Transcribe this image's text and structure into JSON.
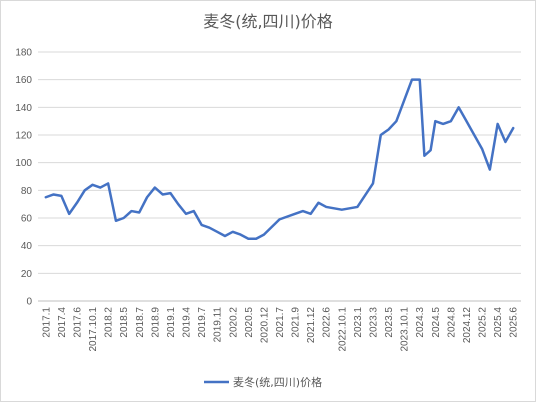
{
  "chart_data": {
    "type": "line",
    "title": "麦冬(统,四川)价格",
    "xlabel": "",
    "ylabel": "",
    "ylim": [
      0,
      180
    ],
    "yticks": [
      0,
      20,
      40,
      60,
      80,
      100,
      120,
      140,
      160,
      180
    ],
    "grid": true,
    "legend_position": "bottom",
    "categories": [
      "2017.1",
      "2017.4",
      "2017.6",
      "2017.10.1",
      "2018.2",
      "2018.5",
      "2018.7",
      "2018.9",
      "2019.1",
      "2019.4",
      "2019.7",
      "2019.11",
      "2020.2",
      "2020.5",
      "2020.12",
      "2021.7",
      "2021.9",
      "2021.12",
      "2022.6",
      "2022.10.1",
      "2023.1",
      "2023.3",
      "2023.5",
      "2023.10.1",
      "2024.3",
      "2024.5",
      "2024.8",
      "2024.12",
      "2025.2",
      "2025.4",
      "2025.6"
    ],
    "series": [
      {
        "name": "麦冬(统,四川)价格",
        "color": "#4472c4",
        "points": [
          [
            0,
            75
          ],
          [
            0.5,
            77
          ],
          [
            1,
            76
          ],
          [
            1.5,
            63
          ],
          [
            2,
            71
          ],
          [
            2.5,
            80
          ],
          [
            3,
            84
          ],
          [
            3.5,
            82
          ],
          [
            4,
            85
          ],
          [
            4.5,
            58
          ],
          [
            5,
            60
          ],
          [
            5.5,
            65
          ],
          [
            6,
            64
          ],
          [
            6.5,
            75
          ],
          [
            7,
            82
          ],
          [
            7.5,
            77
          ],
          [
            8,
            78
          ],
          [
            8.5,
            70
          ],
          [
            9,
            63
          ],
          [
            9.5,
            65
          ],
          [
            10,
            55
          ],
          [
            10.5,
            53
          ],
          [
            11,
            50
          ],
          [
            11.5,
            47
          ],
          [
            12,
            50
          ],
          [
            12.5,
            48
          ],
          [
            13,
            45
          ],
          [
            13.5,
            45
          ],
          [
            14,
            48
          ],
          [
            15,
            59
          ],
          [
            16,
            63
          ],
          [
            16.5,
            65
          ],
          [
            17,
            63
          ],
          [
            17.5,
            71
          ],
          [
            18,
            68
          ],
          [
            19,
            66
          ],
          [
            20,
            68
          ],
          [
            21,
            85
          ],
          [
            21.5,
            120
          ],
          [
            22,
            124
          ],
          [
            22.5,
            130
          ],
          [
            23,
            145
          ],
          [
            23.5,
            160
          ],
          [
            24,
            160
          ],
          [
            24.3,
            105
          ],
          [
            24.7,
            109
          ],
          [
            25,
            130
          ],
          [
            25.5,
            128
          ],
          [
            26,
            130
          ],
          [
            26.5,
            140
          ],
          [
            27,
            130
          ],
          [
            28,
            110
          ],
          [
            28.5,
            95
          ],
          [
            29,
            128
          ],
          [
            29.5,
            115
          ],
          [
            30,
            125
          ]
        ]
      }
    ]
  }
}
